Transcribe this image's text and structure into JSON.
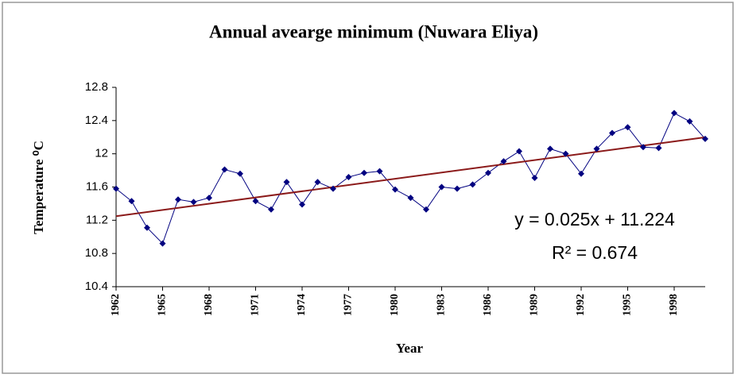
{
  "chart_data": {
    "type": "line",
    "title": "Annual avearge minimum (Nuwara Eliya)",
    "xlabel": "Year",
    "ylabel": "Temperature ⁰C",
    "x": [
      1962,
      1963,
      1964,
      1965,
      1966,
      1967,
      1968,
      1969,
      1970,
      1971,
      1972,
      1973,
      1974,
      1975,
      1976,
      1977,
      1978,
      1979,
      1980,
      1981,
      1982,
      1983,
      1984,
      1985,
      1986,
      1987,
      1988,
      1989,
      1990,
      1991,
      1992,
      1993,
      1994,
      1995,
      1996,
      1997,
      1998,
      1999,
      2000
    ],
    "series": [
      {
        "name": "Annual avearge minimum",
        "color": "#000080",
        "values": [
          11.58,
          11.43,
          11.11,
          10.92,
          11.45,
          11.42,
          11.47,
          11.81,
          11.76,
          11.43,
          11.33,
          11.66,
          11.39,
          11.66,
          11.58,
          11.72,
          11.77,
          11.79,
          11.57,
          11.47,
          11.33,
          11.6,
          11.58,
          11.63,
          11.77,
          11.91,
          12.03,
          11.71,
          12.06,
          12.0,
          11.76,
          12.06,
          12.25,
          12.32,
          12.08,
          12.07,
          12.49,
          12.39,
          12.18
        ]
      }
    ],
    "trendline": {
      "slope": 0.025,
      "intercept": 11.224,
      "color": "#8b1a1a",
      "equation": "y = 0.025x + 11.224",
      "r2_label": "R² = 0.674"
    },
    "xlim": [
      1962,
      2000
    ],
    "xticks": [
      1962,
      1965,
      1968,
      1971,
      1974,
      1977,
      1980,
      1983,
      1986,
      1989,
      1992,
      1995,
      1998
    ],
    "ylim": [
      10.4,
      12.8
    ],
    "yticks": [
      10.4,
      10.8,
      11.2,
      11.6,
      12,
      12.4,
      12.8
    ],
    "grid": false
  }
}
